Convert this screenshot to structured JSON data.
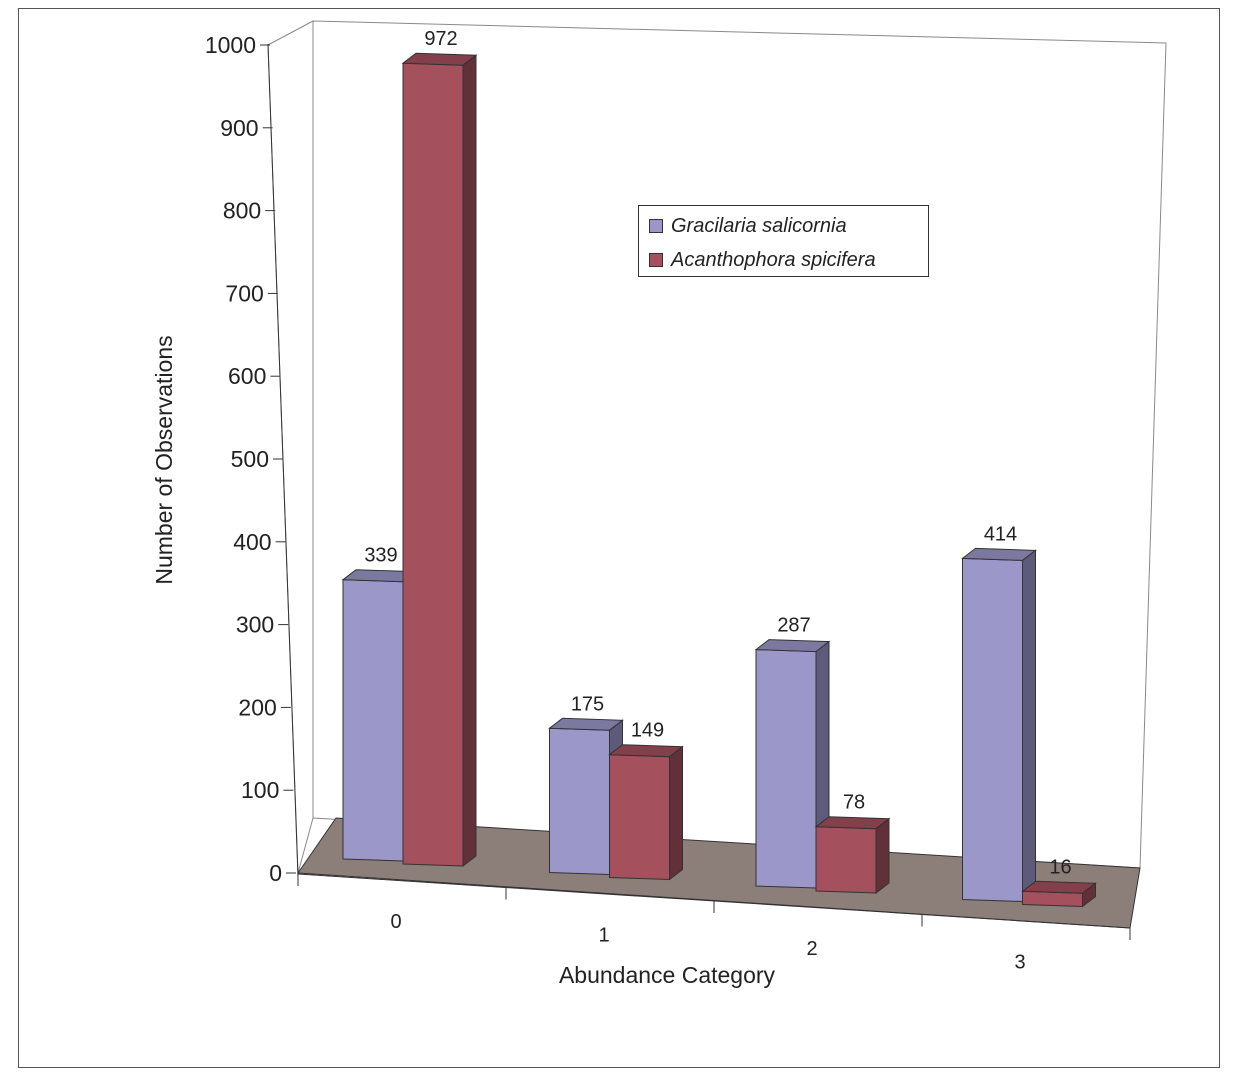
{
  "chart_data": {
    "type": "bar",
    "three_d": true,
    "title": "",
    "xlabel": "Abundance Category",
    "ylabel": "Number of Observations",
    "categories": [
      "0",
      "1",
      "2",
      "3"
    ],
    "yticks": [
      0,
      100,
      200,
      300,
      400,
      500,
      600,
      700,
      800,
      900,
      1000
    ],
    "ylim": [
      0,
      1000
    ],
    "grid": false,
    "legend_position": "upper-center",
    "series": [
      {
        "name": "Gracilaria salicornia",
        "values": [
          339,
          175,
          287,
          414
        ],
        "color": "#9b97c9"
      },
      {
        "name": "Acanthophora spicifera",
        "values": [
          972,
          149,
          78,
          16
        ],
        "color": "#a4505d"
      }
    ],
    "floor_color": "#8c7f7a"
  }
}
